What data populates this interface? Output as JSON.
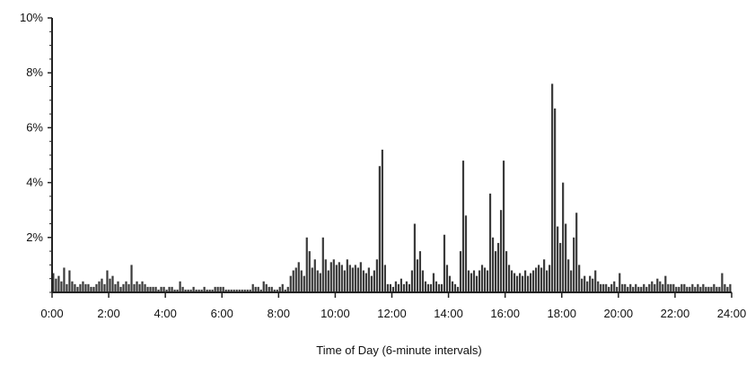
{
  "chart_data": {
    "type": "bar",
    "title": "",
    "xlabel": "Time of Day (6-minute intervals)",
    "ylabel": "",
    "x_range": [
      "0:00",
      "24:00"
    ],
    "interval_minutes": 6,
    "ylim": [
      0,
      10
    ],
    "y_unit": "%",
    "grid": false,
    "legend": "none",
    "bar_color": "#3a3a3a",
    "y_ticks": [
      "10%",
      "8%",
      "6%",
      "4%",
      "2%"
    ],
    "x_ticks": [
      "0:00",
      "2:00",
      "4:00",
      "6:00",
      "8:00",
      "10:00",
      "12:00",
      "14:00",
      "16:00",
      "18:00",
      "20:00",
      "22:00",
      "24:00"
    ],
    "series": [
      {
        "values": [
          0.7,
          0.5,
          0.6,
          0.4,
          0.9,
          0.3,
          0.8,
          0.4,
          0.3,
          0.2,
          0.3,
          0.4,
          0.3,
          0.3,
          0.2,
          0.2,
          0.3,
          0.4,
          0.5,
          0.3,
          0.8,
          0.5,
          0.6,
          0.3,
          0.4,
          0.2,
          0.3,
          0.4,
          0.3,
          1.0,
          0.3,
          0.4,
          0.3,
          0.4,
          0.3,
          0.2,
          0.2,
          0.2,
          0.2,
          0.1,
          0.2,
          0.2,
          0.1,
          0.2,
          0.2,
          0.1,
          0.1,
          0.4,
          0.2,
          0.1,
          0.1,
          0.1,
          0.2,
          0.1,
          0.1,
          0.1,
          0.2,
          0.1,
          0.1,
          0.1,
          0.2,
          0.2,
          0.2,
          0.2,
          0.1,
          0.1,
          0.1,
          0.1,
          0.1,
          0.1,
          0.1,
          0.1,
          0.1,
          0.1,
          0.3,
          0.2,
          0.2,
          0.1,
          0.4,
          0.3,
          0.2,
          0.2,
          0.1,
          0.1,
          0.2,
          0.3,
          0.1,
          0.2,
          0.6,
          0.8,
          0.9,
          1.1,
          0.8,
          0.6,
          2.0,
          1.5,
          0.9,
          1.2,
          0.8,
          0.7,
          2.0,
          1.2,
          0.8,
          1.1,
          1.2,
          1.0,
          1.1,
          1.0,
          0.8,
          1.2,
          1.0,
          0.9,
          1.0,
          0.9,
          1.1,
          0.8,
          0.7,
          0.9,
          0.6,
          0.8,
          1.2,
          4.6,
          5.2,
          1.0,
          0.3,
          0.3,
          0.2,
          0.4,
          0.3,
          0.5,
          0.3,
          0.4,
          0.3,
          0.8,
          2.5,
          1.2,
          1.5,
          0.8,
          0.4,
          0.3,
          0.3,
          0.7,
          0.4,
          0.3,
          0.3,
          2.1,
          1.0,
          0.6,
          0.4,
          0.3,
          0.2,
          1.5,
          4.8,
          2.8,
          0.8,
          0.7,
          0.8,
          0.6,
          0.8,
          1.0,
          0.9,
          0.8,
          3.6,
          2.0,
          1.5,
          1.8,
          3.0,
          4.8,
          1.5,
          1.0,
          0.8,
          0.7,
          0.6,
          0.7,
          0.6,
          0.8,
          0.6,
          0.7,
          0.8,
          0.9,
          1.0,
          0.9,
          1.2,
          0.8,
          1.0,
          7.6,
          6.7,
          2.4,
          1.8,
          4.0,
          2.5,
          1.2,
          0.8,
          2.0,
          2.9,
          1.0,
          0.5,
          0.6,
          0.4,
          0.6,
          0.5,
          0.8,
          0.4,
          0.3,
          0.3,
          0.3,
          0.2,
          0.3,
          0.4,
          0.2,
          0.7,
          0.3,
          0.3,
          0.2,
          0.3,
          0.2,
          0.3,
          0.2,
          0.2,
          0.3,
          0.2,
          0.3,
          0.4,
          0.3,
          0.5,
          0.4,
          0.3,
          0.6,
          0.3,
          0.3,
          0.3,
          0.2,
          0.2,
          0.3,
          0.3,
          0.2,
          0.2,
          0.3,
          0.2,
          0.3,
          0.2,
          0.3,
          0.2,
          0.2,
          0.2,
          0.3,
          0.2,
          0.2,
          0.7,
          0.3,
          0.2,
          0.3
        ]
      }
    ]
  }
}
